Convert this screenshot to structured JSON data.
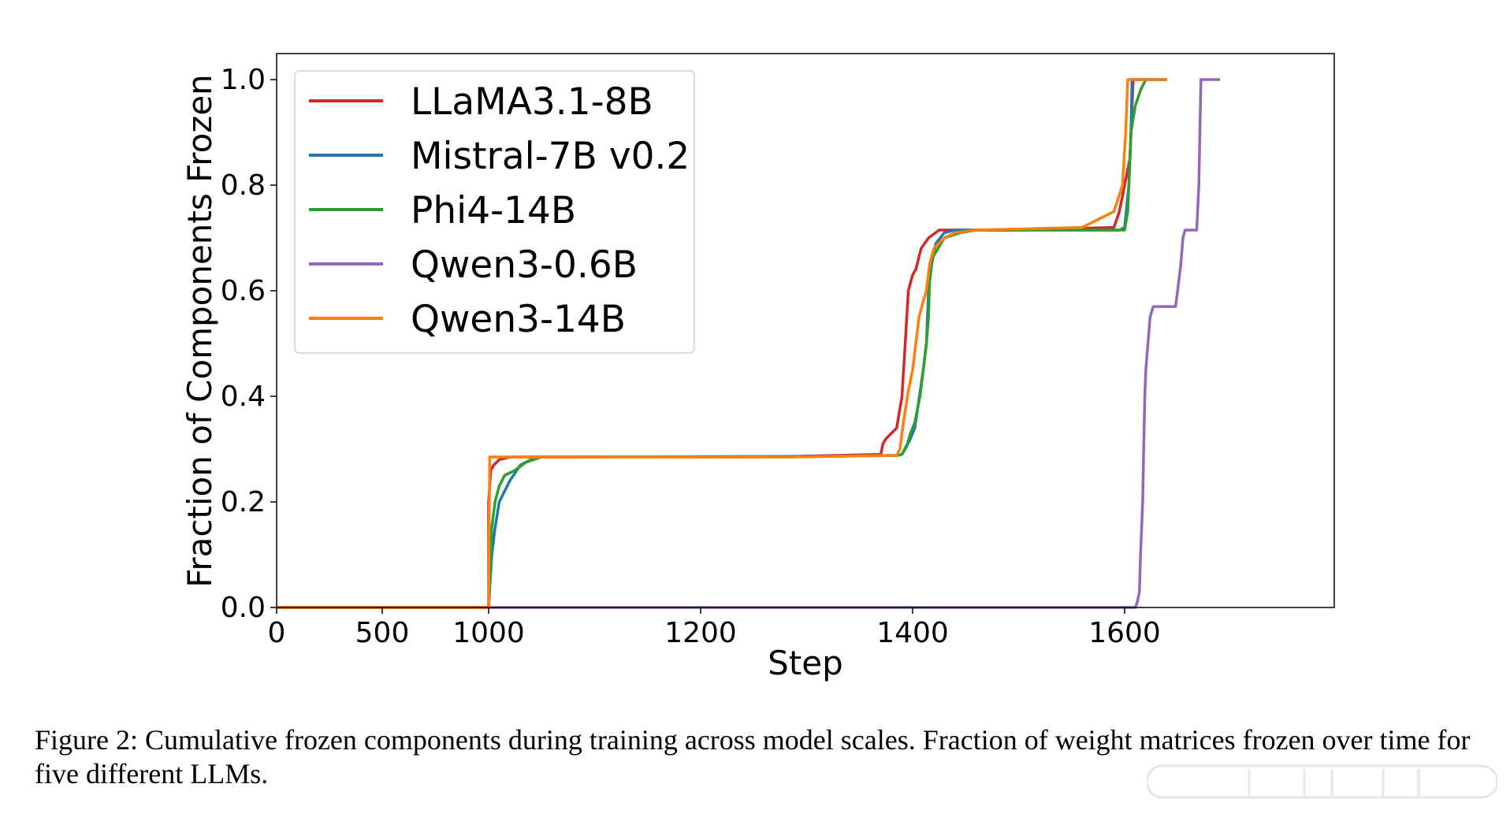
{
  "chart_data": {
    "type": "line",
    "xlabel": "Step",
    "ylabel": "Fraction of Components Frozen",
    "x_tick_labels": [
      0,
      500,
      1000,
      1200,
      1400,
      1600
    ],
    "x_tick_steps": [
      0,
      500,
      1000,
      1200,
      1400,
      1600
    ],
    "xlim_note": "axis is piecewise: 0-1000 compressed, 1000-1600 linear",
    "y_ticks": [
      0.0,
      0.2,
      0.4,
      0.6,
      0.8,
      1.0
    ],
    "y_tick_labels": [
      "0.0",
      "0.2",
      "0.4",
      "0.6",
      "0.8",
      "1.0"
    ],
    "ylim": [
      0.0,
      1.0
    ],
    "grid": false,
    "legend_position": "top-left",
    "series": [
      {
        "name": "LLaMA3.1-8B",
        "color": "#d62728",
        "points": [
          [
            0,
            0
          ],
          [
            1000,
            0
          ],
          [
            1000,
            0.2
          ],
          [
            1002,
            0.26
          ],
          [
            1005,
            0.27
          ],
          [
            1010,
            0.28
          ],
          [
            1020,
            0.285
          ],
          [
            1050,
            0.285
          ],
          [
            1280,
            0.286
          ],
          [
            1370,
            0.29
          ],
          [
            1372,
            0.31
          ],
          [
            1375,
            0.32
          ],
          [
            1380,
            0.33
          ],
          [
            1385,
            0.34
          ],
          [
            1390,
            0.4
          ],
          [
            1393,
            0.5
          ],
          [
            1396,
            0.6
          ],
          [
            1400,
            0.63
          ],
          [
            1403,
            0.64
          ],
          [
            1408,
            0.68
          ],
          [
            1415,
            0.7
          ],
          [
            1425,
            0.715
          ],
          [
            1500,
            0.715
          ],
          [
            1590,
            0.72
          ],
          [
            1595,
            0.75
          ],
          [
            1600,
            0.8
          ],
          [
            1605,
            0.85
          ],
          [
            1608,
            1.0
          ],
          [
            1640,
            1.0
          ]
        ]
      },
      {
        "name": "Mistral-7B v0.2",
        "color": "#1f77b4",
        "points": [
          [
            0,
            0
          ],
          [
            1000,
            0
          ],
          [
            1003,
            0.1
          ],
          [
            1006,
            0.15
          ],
          [
            1010,
            0.2
          ],
          [
            1020,
            0.24
          ],
          [
            1030,
            0.27
          ],
          [
            1045,
            0.285
          ],
          [
            1280,
            0.286
          ],
          [
            1385,
            0.288
          ],
          [
            1390,
            0.29
          ],
          [
            1393,
            0.3
          ],
          [
            1398,
            0.32
          ],
          [
            1402,
            0.34
          ],
          [
            1405,
            0.38
          ],
          [
            1410,
            0.45
          ],
          [
            1413,
            0.5
          ],
          [
            1415,
            0.6
          ],
          [
            1418,
            0.65
          ],
          [
            1422,
            0.69
          ],
          [
            1430,
            0.71
          ],
          [
            1440,
            0.715
          ],
          [
            1500,
            0.715
          ],
          [
            1595,
            0.715
          ],
          [
            1600,
            0.72
          ],
          [
            1604,
            0.8
          ],
          [
            1606,
            0.9
          ],
          [
            1607,
            1.0
          ],
          [
            1640,
            1.0
          ]
        ]
      },
      {
        "name": "Phi4-14B",
        "color": "#2ca02c",
        "points": [
          [
            0,
            0
          ],
          [
            1000,
            0
          ],
          [
            1003,
            0.15
          ],
          [
            1006,
            0.2
          ],
          [
            1010,
            0.23
          ],
          [
            1015,
            0.25
          ],
          [
            1025,
            0.26
          ],
          [
            1035,
            0.275
          ],
          [
            1050,
            0.285
          ],
          [
            1280,
            0.285
          ],
          [
            1385,
            0.288
          ],
          [
            1390,
            0.29
          ],
          [
            1395,
            0.31
          ],
          [
            1398,
            0.33
          ],
          [
            1402,
            0.35
          ],
          [
            1407,
            0.4
          ],
          [
            1410,
            0.45
          ],
          [
            1413,
            0.5
          ],
          [
            1415,
            0.55
          ],
          [
            1416,
            0.62
          ],
          [
            1418,
            0.66
          ],
          [
            1424,
            0.68
          ],
          [
            1430,
            0.7
          ],
          [
            1445,
            0.71
          ],
          [
            1460,
            0.715
          ],
          [
            1600,
            0.715
          ],
          [
            1603,
            0.75
          ],
          [
            1606,
            0.9
          ],
          [
            1610,
            0.95
          ],
          [
            1615,
            0.98
          ],
          [
            1620,
            1.0
          ],
          [
            1640,
            1.0
          ]
        ]
      },
      {
        "name": "Qwen3-0.6B",
        "color": "#9467bd",
        "points": [
          [
            0,
            0
          ],
          [
            1400,
            0
          ],
          [
            1610,
            0
          ],
          [
            1612,
            0.01
          ],
          [
            1614,
            0.03
          ],
          [
            1615,
            0.1
          ],
          [
            1617,
            0.2
          ],
          [
            1618,
            0.3
          ],
          [
            1619,
            0.4
          ],
          [
            1620,
            0.45
          ],
          [
            1622,
            0.5
          ],
          [
            1624,
            0.55
          ],
          [
            1627,
            0.57
          ],
          [
            1648,
            0.57
          ],
          [
            1650,
            0.6
          ],
          [
            1653,
            0.65
          ],
          [
            1655,
            0.7
          ],
          [
            1657,
            0.715
          ],
          [
            1668,
            0.715
          ],
          [
            1670,
            0.8
          ],
          [
            1672,
            1.0
          ],
          [
            1690,
            1.0
          ]
        ]
      },
      {
        "name": "Qwen3-14B",
        "color": "#ff7f0e",
        "points": [
          [
            0,
            0
          ],
          [
            1000,
            0
          ],
          [
            1001,
            0.285
          ],
          [
            1010,
            0.285
          ],
          [
            1280,
            0.285
          ],
          [
            1385,
            0.288
          ],
          [
            1388,
            0.3
          ],
          [
            1392,
            0.36
          ],
          [
            1396,
            0.41
          ],
          [
            1400,
            0.45
          ],
          [
            1403,
            0.5
          ],
          [
            1406,
            0.55
          ],
          [
            1410,
            0.58
          ],
          [
            1413,
            0.6
          ],
          [
            1416,
            0.65
          ],
          [
            1420,
            0.68
          ],
          [
            1430,
            0.7
          ],
          [
            1440,
            0.71
          ],
          [
            1460,
            0.715
          ],
          [
            1560,
            0.72
          ],
          [
            1580,
            0.74
          ],
          [
            1590,
            0.75
          ],
          [
            1598,
            0.8
          ],
          [
            1601,
            0.9
          ],
          [
            1603,
            1.0
          ],
          [
            1640,
            1.0
          ]
        ]
      }
    ]
  },
  "caption": {
    "text": "Figure 2: Cumulative frozen components during training across model scales. Fraction of weight matrices frozen over time for five different LLMs."
  }
}
